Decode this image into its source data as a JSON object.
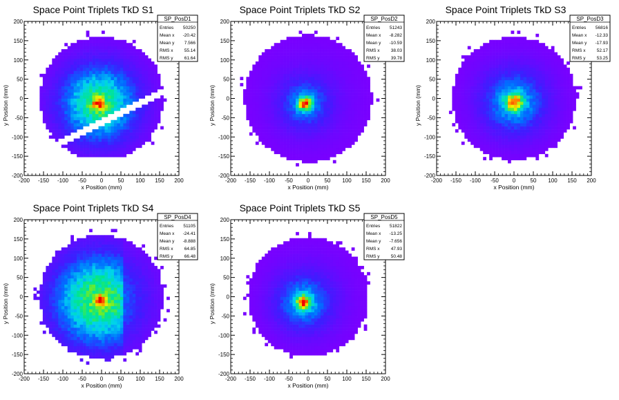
{
  "chart_data": [
    {
      "type": "heatmap",
      "title": "Space Point Triplets TkD S1",
      "xlabel": "x Position (mm)",
      "ylabel": "y Position (mm)",
      "xlim": [
        -200,
        200
      ],
      "ylim": [
        -200,
        200
      ],
      "x_ticks": [
        "-200",
        "-150",
        "-100",
        "-50",
        "0",
        "50",
        "100",
        "150",
        "200"
      ],
      "y_ticks": [
        "-200",
        "-150",
        "-100",
        "-50",
        "0",
        "50",
        "100",
        "150",
        "200"
      ],
      "stats": {
        "name": "SP_PosD1",
        "rows": [
          {
            "label": "Entries",
            "value": "50250"
          },
          {
            "label": "Mean x",
            "value": "-20.42"
          },
          {
            "label": "Mean y",
            "value": "7.566"
          },
          {
            "label": "RMS x",
            "value": "55.14"
          },
          {
            "label": "RMS y",
            "value": "61.64"
          }
        ]
      },
      "distribution": {
        "center_x": -8,
        "center_y": -14,
        "extent_radius": 160,
        "core_sigma": 12,
        "broad_sigma": 70,
        "broad_weight": 0.55,
        "gap": {
          "slope": 0.5,
          "offset": -62,
          "halfwidth": 9
        },
        "cut_below": -150
      }
    },
    {
      "type": "heatmap",
      "title": "Space Point Triplets TkD S2",
      "xlabel": "x Position (mm)",
      "ylabel": "y Position (mm)",
      "xlim": [
        -200,
        200
      ],
      "ylim": [
        -200,
        200
      ],
      "x_ticks": [
        "-200",
        "-150",
        "-100",
        "-50",
        "0",
        "50",
        "100",
        "150",
        "200"
      ],
      "y_ticks": [
        "-200",
        "-150",
        "-100",
        "-50",
        "0",
        "50",
        "100",
        "150",
        "200"
      ],
      "stats": {
        "name": "SP_PosD2",
        "rows": [
          {
            "label": "Entries",
            "value": "51243"
          },
          {
            "label": "Mean x",
            "value": "-8.282"
          },
          {
            "label": "Mean y",
            "value": "-10.59"
          },
          {
            "label": "RMS x",
            "value": "38.03"
          },
          {
            "label": "RMS y",
            "value": "39.78"
          }
        ]
      },
      "distribution": {
        "center_x": -8,
        "center_y": -14,
        "extent_radius": 165,
        "core_sigma": 12,
        "broad_sigma": 45,
        "broad_weight": 0.3
      }
    },
    {
      "type": "heatmap",
      "title": "Space Point Triplets TkD S3",
      "xlabel": "x Position (mm)",
      "ylabel": "y Position (mm)",
      "xlim": [
        -200,
        200
      ],
      "ylim": [
        -200,
        200
      ],
      "x_ticks": [
        "-200",
        "-150",
        "-100",
        "-50",
        "0",
        "50",
        "100",
        "150",
        "200"
      ],
      "y_ticks": [
        "-200",
        "-150",
        "-100",
        "-50",
        "0",
        "50",
        "100",
        "150",
        "200"
      ],
      "stats": {
        "name": "SP_PosD3",
        "rows": [
          {
            "label": "Entries",
            "value": "56816"
          },
          {
            "label": "Mean x",
            "value": "-12.33"
          },
          {
            "label": "Mean y",
            "value": "-17.93"
          },
          {
            "label": "RMS x",
            "value": "52.17"
          },
          {
            "label": "RMS y",
            "value": "53.25"
          }
        ]
      },
      "distribution": {
        "center_x": 0,
        "center_y": -10,
        "extent_radius": 160,
        "core_sigma": 14,
        "broad_sigma": 55,
        "broad_weight": 0.38
      }
    },
    {
      "type": "heatmap",
      "title": "Space Point Triplets TkD S4",
      "xlabel": "x Position (mm)",
      "ylabel": "y Position (mm)",
      "xlim": [
        -200,
        200
      ],
      "ylim": [
        -200,
        200
      ],
      "x_ticks": [
        "-200",
        "-150",
        "-100",
        "-50",
        "0",
        "50",
        "100",
        "150",
        "200"
      ],
      "y_ticks": [
        "-200",
        "-150",
        "-100",
        "-50",
        "0",
        "50",
        "100",
        "150",
        "200"
      ],
      "stats": {
        "name": "SP_PosD4",
        "rows": [
          {
            "label": "Entries",
            "value": "51105"
          },
          {
            "label": "Mean x",
            "value": "-24.41"
          },
          {
            "label": "Mean y",
            "value": "-8.888"
          },
          {
            "label": "RMS x",
            "value": "64.85"
          },
          {
            "label": "RMS y",
            "value": "66.48"
          }
        ]
      },
      "distribution": {
        "center_x": -5,
        "center_y": -10,
        "extent_radius": 160,
        "core_sigma": 10,
        "broad_sigma": 85,
        "broad_weight": 0.6,
        "right_dim_from_x": 55
      }
    },
    {
      "type": "heatmap",
      "title": "Space Point Triplets TkD S5",
      "xlabel": "x Position (mm)",
      "ylabel": "y Position (mm)",
      "xlim": [
        -200,
        200
      ],
      "ylim": [
        -200,
        200
      ],
      "x_ticks": [
        "-200",
        "-150",
        "-100",
        "-50",
        "0",
        "50",
        "100",
        "150",
        "200"
      ],
      "y_ticks": [
        "-200",
        "-150",
        "-100",
        "-50",
        "0",
        "50",
        "100",
        "150",
        "200"
      ],
      "stats": {
        "name": "SP_PosD5",
        "rows": [
          {
            "label": "Entries",
            "value": "51822"
          },
          {
            "label": "Mean x",
            "value": "-13.25"
          },
          {
            "label": "Mean y",
            "value": "-7.656"
          },
          {
            "label": "RMS x",
            "value": "47.93"
          },
          {
            "label": "RMS y",
            "value": "50.48"
          }
        ]
      },
      "distribution": {
        "center_x": -12,
        "center_y": -15,
        "extent_radius": 155,
        "core_sigma": 12,
        "broad_sigma": 50,
        "broad_weight": 0.35
      }
    }
  ]
}
